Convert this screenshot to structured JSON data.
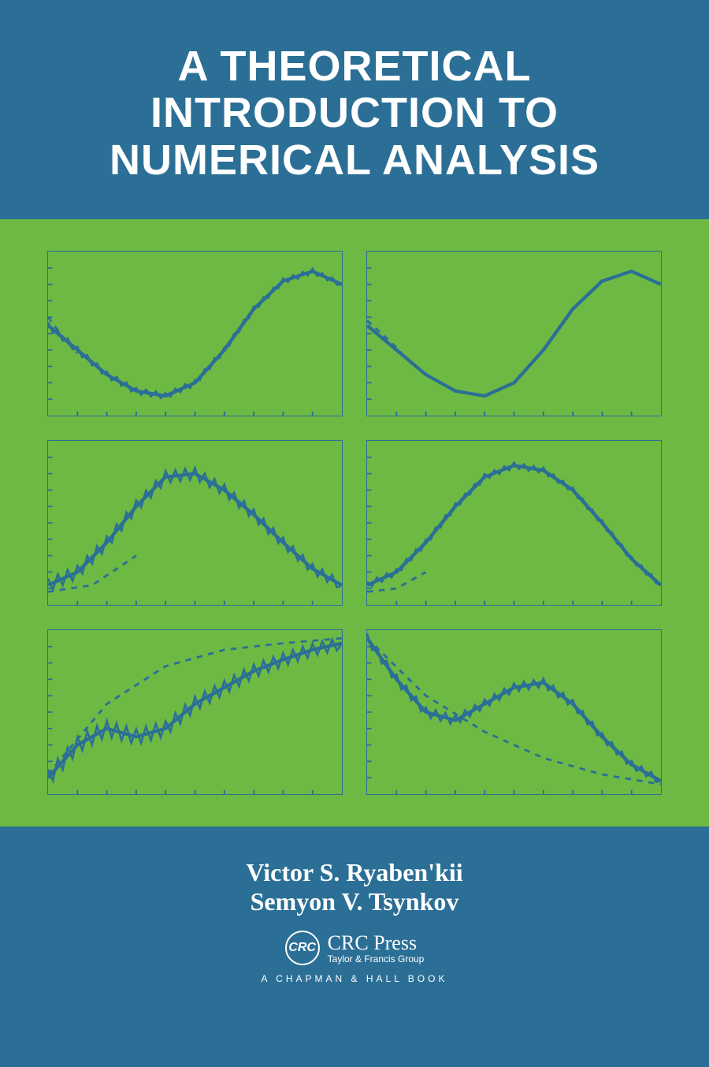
{
  "title": {
    "line1": "A THEORETICAL",
    "line2": "INTRODUCTION TO",
    "line3": "NUMERICAL ANALYSIS",
    "fontsize": 54,
    "color": "#ffffff"
  },
  "background_color": "#2b6f96",
  "chart_area": {
    "background_color": "#6eb943",
    "border_color": "#2b6f96",
    "line_color": "#2b6f96",
    "curves": [
      {
        "name": "sine-approx-1",
        "main": [
          [
            0,
            0.55
          ],
          [
            0.1,
            0.4
          ],
          [
            0.2,
            0.25
          ],
          [
            0.3,
            0.15
          ],
          [
            0.4,
            0.12
          ],
          [
            0.5,
            0.2
          ],
          [
            0.6,
            0.4
          ],
          [
            0.7,
            0.65
          ],
          [
            0.8,
            0.82
          ],
          [
            0.9,
            0.88
          ],
          [
            1.0,
            0.8
          ]
        ],
        "jitter": 0.02,
        "dashed": [
          [
            0,
            0.6
          ],
          [
            0.05,
            0.48
          ],
          [
            0.1,
            0.38
          ]
        ]
      },
      {
        "name": "sine-approx-2",
        "main": [
          [
            0,
            0.55
          ],
          [
            0.1,
            0.4
          ],
          [
            0.2,
            0.25
          ],
          [
            0.3,
            0.15
          ],
          [
            0.4,
            0.12
          ],
          [
            0.5,
            0.2
          ],
          [
            0.6,
            0.4
          ],
          [
            0.7,
            0.65
          ],
          [
            0.8,
            0.82
          ],
          [
            0.9,
            0.88
          ],
          [
            1.0,
            0.8
          ]
        ],
        "jitter": 0.0,
        "dashed": [
          [
            0,
            0.58
          ],
          [
            0.08,
            0.45
          ],
          [
            0.15,
            0.32
          ]
        ]
      },
      {
        "name": "bump-noisy",
        "main": [
          [
            0,
            0.12
          ],
          [
            0.1,
            0.2
          ],
          [
            0.2,
            0.38
          ],
          [
            0.3,
            0.6
          ],
          [
            0.4,
            0.78
          ],
          [
            0.5,
            0.8
          ],
          [
            0.6,
            0.7
          ],
          [
            0.7,
            0.55
          ],
          [
            0.8,
            0.38
          ],
          [
            0.9,
            0.22
          ],
          [
            1.0,
            0.12
          ]
        ],
        "jitter": 0.04,
        "dashed": [
          [
            0,
            0.08
          ],
          [
            0.15,
            0.12
          ],
          [
            0.3,
            0.3
          ]
        ]
      },
      {
        "name": "bump-smooth",
        "main": [
          [
            0,
            0.12
          ],
          [
            0.1,
            0.2
          ],
          [
            0.2,
            0.38
          ],
          [
            0.3,
            0.6
          ],
          [
            0.4,
            0.78
          ],
          [
            0.5,
            0.85
          ],
          [
            0.6,
            0.82
          ],
          [
            0.7,
            0.7
          ],
          [
            0.8,
            0.5
          ],
          [
            0.9,
            0.28
          ],
          [
            1.0,
            0.12
          ]
        ],
        "jitter": 0.02,
        "dashed": [
          [
            0,
            0.08
          ],
          [
            0.1,
            0.1
          ],
          [
            0.2,
            0.2
          ]
        ]
      },
      {
        "name": "multi-noisy",
        "main": [
          [
            0,
            0.1
          ],
          [
            0.1,
            0.3
          ],
          [
            0.2,
            0.4
          ],
          [
            0.3,
            0.35
          ],
          [
            0.4,
            0.4
          ],
          [
            0.5,
            0.55
          ],
          [
            0.6,
            0.65
          ],
          [
            0.7,
            0.75
          ],
          [
            0.8,
            0.82
          ],
          [
            0.9,
            0.88
          ],
          [
            1.0,
            0.92
          ]
        ],
        "jitter": 0.05,
        "dashed": [
          [
            0,
            0.12
          ],
          [
            0.2,
            0.55
          ],
          [
            0.4,
            0.78
          ],
          [
            0.6,
            0.88
          ],
          [
            0.8,
            0.92
          ],
          [
            1.0,
            0.95
          ]
        ]
      },
      {
        "name": "decay-bump",
        "main": [
          [
            0,
            0.95
          ],
          [
            0.1,
            0.7
          ],
          [
            0.2,
            0.5
          ],
          [
            0.3,
            0.45
          ],
          [
            0.4,
            0.55
          ],
          [
            0.5,
            0.65
          ],
          [
            0.6,
            0.68
          ],
          [
            0.7,
            0.55
          ],
          [
            0.8,
            0.35
          ],
          [
            0.9,
            0.18
          ],
          [
            1.0,
            0.08
          ]
        ],
        "jitter": 0.03,
        "dashed": [
          [
            0,
            0.95
          ],
          [
            0.2,
            0.6
          ],
          [
            0.4,
            0.38
          ],
          [
            0.6,
            0.22
          ],
          [
            0.8,
            0.12
          ],
          [
            1.0,
            0.06
          ]
        ]
      }
    ]
  },
  "authors": {
    "line1": "Victor S. Ryaben'kii",
    "line2": "Semyon V. Tsynkov",
    "fontsize": 32,
    "color": "#ffffff"
  },
  "publisher": {
    "crc_abbrev": "CRC",
    "crc_press": "CRC Press",
    "tf_group": "Taylor & Francis Group",
    "crc_fontsize": 26,
    "tf_fontsize": 12
  },
  "imprint": {
    "text": "A  CHAPMAN  &  HALL  BOOK",
    "fontsize": 12
  }
}
